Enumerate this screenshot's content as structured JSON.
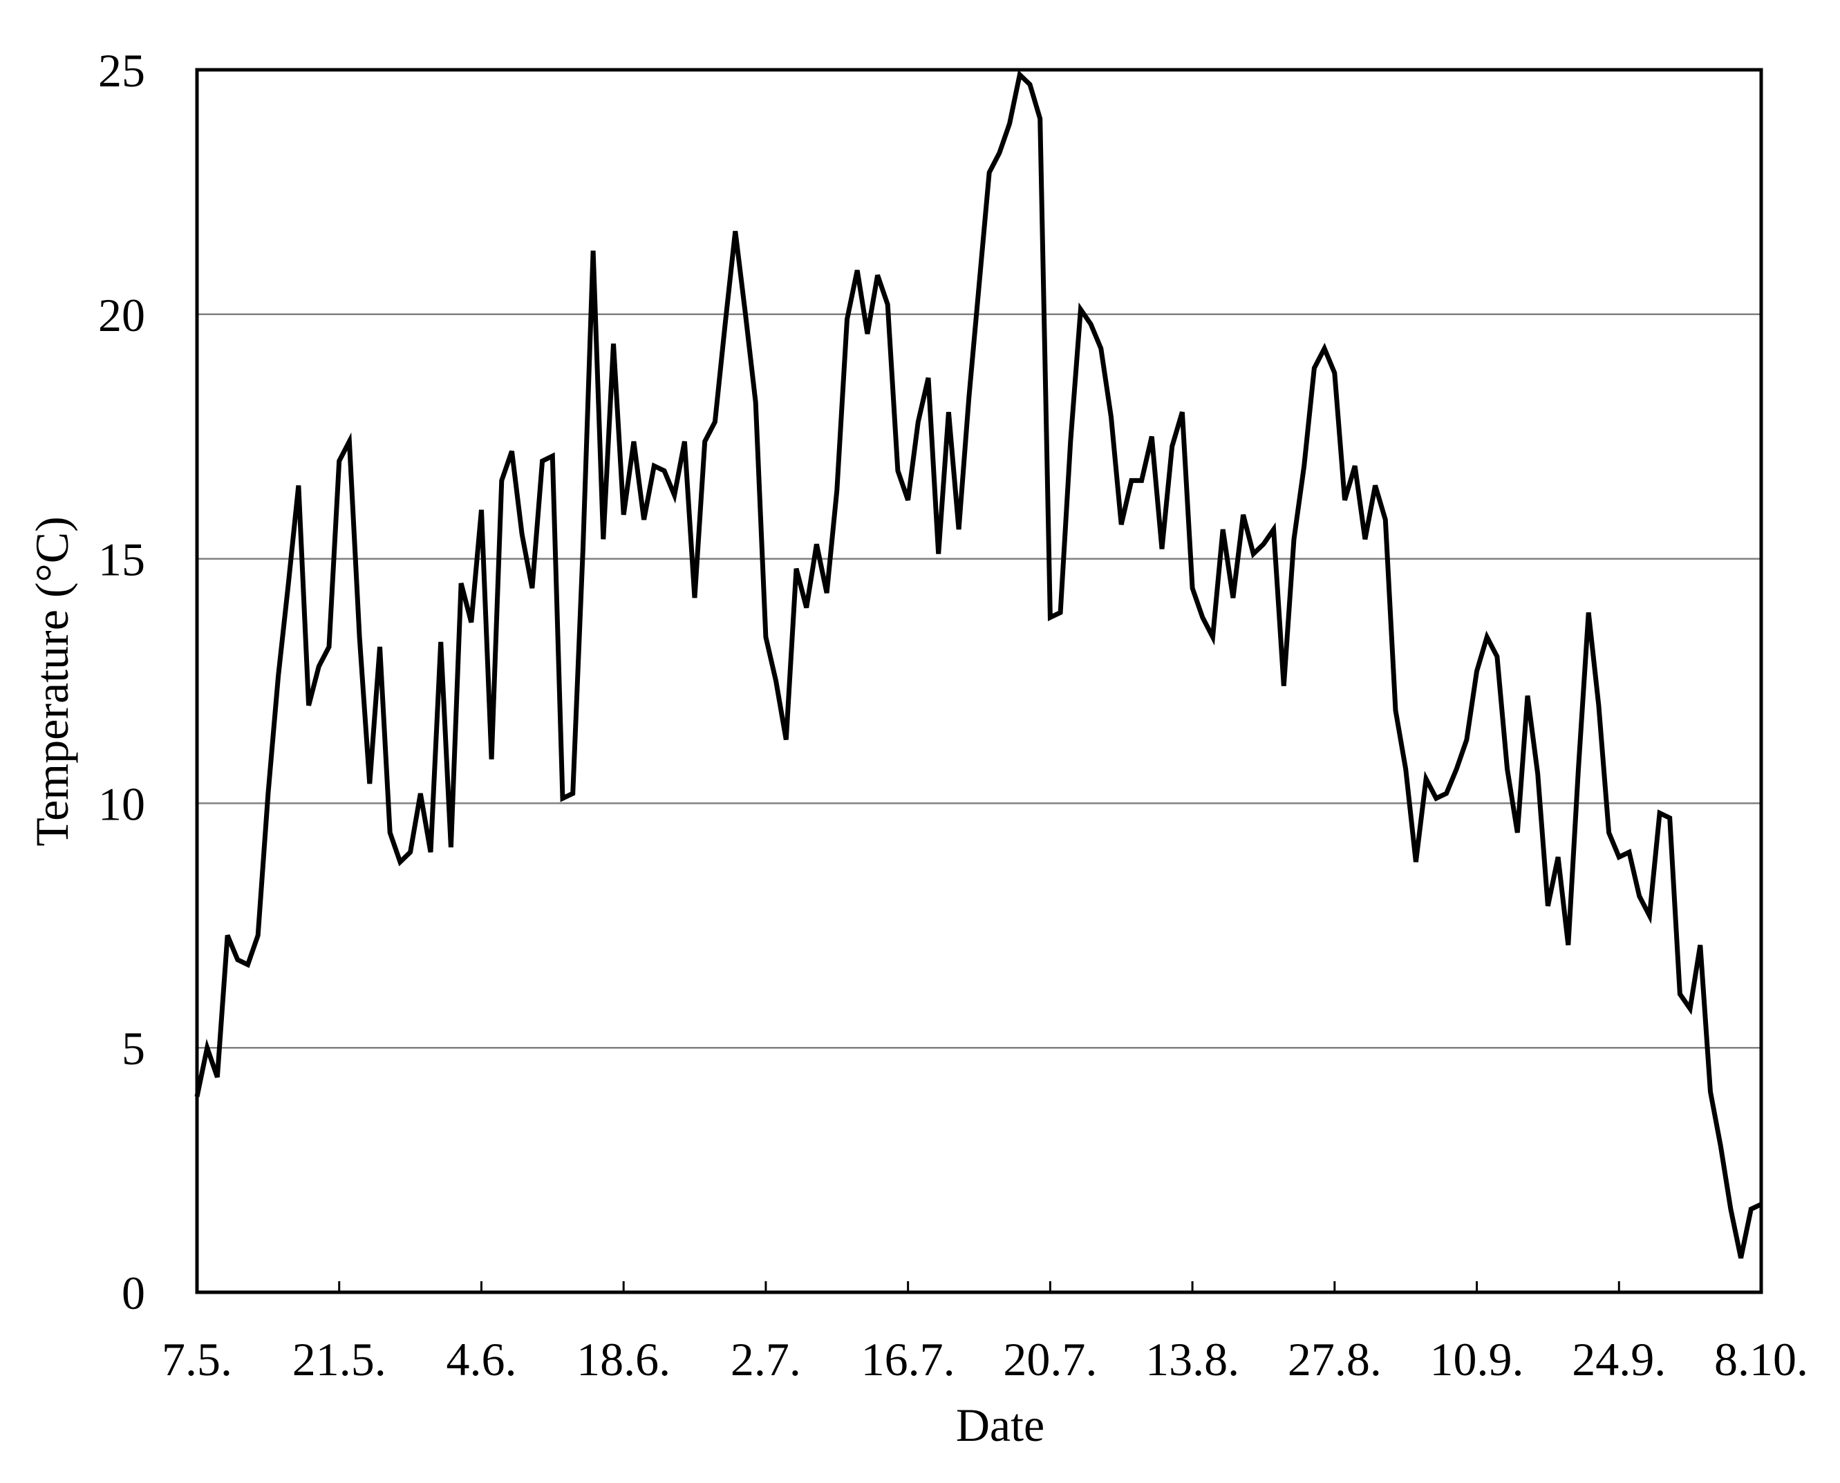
{
  "chart_data": {
    "type": "line",
    "x_label": "Date",
    "y_label": "Temperature (°C)",
    "categories": [
      "7.5.",
      null,
      null,
      null,
      null,
      null,
      null,
      null,
      null,
      null,
      null,
      null,
      null,
      null,
      "21.5.",
      null,
      null,
      null,
      null,
      null,
      null,
      null,
      null,
      null,
      null,
      null,
      null,
      null,
      "4.6.",
      null,
      null,
      null,
      null,
      null,
      null,
      null,
      null,
      null,
      null,
      null,
      null,
      null,
      "18.6.",
      null,
      null,
      null,
      null,
      null,
      null,
      null,
      null,
      null,
      null,
      null,
      null,
      null,
      "2.7.",
      null,
      null,
      null,
      null,
      null,
      null,
      null,
      null,
      null,
      null,
      null,
      null,
      null,
      "16.7.",
      null,
      null,
      null,
      null,
      null,
      null,
      null,
      null,
      null,
      null,
      null,
      null,
      null,
      "20.7.",
      null,
      null,
      null,
      null,
      null,
      null,
      null,
      null,
      null,
      null,
      null,
      null,
      null,
      "13.8.",
      null,
      null,
      null,
      null,
      null,
      null,
      null,
      null,
      null,
      null,
      null,
      null,
      null,
      "27.8.",
      null,
      null,
      null,
      null,
      null,
      null,
      null,
      null,
      null,
      null,
      null,
      null,
      null,
      "10.9.",
      null,
      null,
      null,
      null,
      null,
      null,
      null,
      null,
      null,
      null,
      null,
      null,
      null,
      "24.9.",
      null,
      null,
      null,
      null,
      null,
      null,
      null,
      null,
      null,
      null,
      null,
      null,
      null,
      "8.10."
    ],
    "series": [
      {
        "color": "#000000",
        "values": [
          4.0,
          5.0,
          4.4,
          7.3,
          6.8,
          6.7,
          7.3,
          10.2,
          12.6,
          14.5,
          16.5,
          12.0,
          12.8,
          13.2,
          17.0,
          17.4,
          13.4,
          10.4,
          13.2,
          9.4,
          8.8,
          9.0,
          10.2,
          9.0,
          13.3,
          9.1,
          14.5,
          13.7,
          16.0,
          10.9,
          16.6,
          17.2,
          15.5,
          14.4,
          17.0,
          17.1,
          10.1,
          10.2,
          15.2,
          21.3,
          15.4,
          19.4,
          15.9,
          17.4,
          15.8,
          16.9,
          16.8,
          16.3,
          17.4,
          14.2,
          17.4,
          17.8,
          19.8,
          21.7,
          20.0,
          18.2,
          13.4,
          12.5,
          11.3,
          14.8,
          14.0,
          15.3,
          14.3,
          16.4,
          19.9,
          20.9,
          19.6,
          20.8,
          20.2,
          16.8,
          16.2,
          17.8,
          18.7,
          15.1,
          18.0,
          15.6,
          18.3,
          20.6,
          22.9,
          23.3,
          23.9,
          24.9,
          24.7,
          24.0,
          13.8,
          13.9,
          17.4,
          20.1,
          19.8,
          19.3,
          17.9,
          15.7,
          16.6,
          16.6,
          17.5,
          15.2,
          17.3,
          18.0,
          14.4,
          13.8,
          13.4,
          15.6,
          14.2,
          15.9,
          15.1,
          15.3,
          15.6,
          12.4,
          15.4,
          16.9,
          18.9,
          19.3,
          18.8,
          16.2,
          16.9,
          15.4,
          16.5,
          15.8,
          11.9,
          10.7,
          8.8,
          10.5,
          10.1,
          10.2,
          10.7,
          11.3,
          12.7,
          13.4,
          13.0,
          10.7,
          9.4,
          12.2,
          10.6,
          7.9,
          8.9,
          7.1,
          10.7,
          13.9,
          12.0,
          9.4,
          8.9,
          9.0,
          8.1,
          7.7,
          9.8,
          9.7,
          6.1,
          5.8,
          7.1,
          4.1,
          3.0,
          1.7,
          0.7,
          1.7,
          1.8
        ]
      }
    ],
    "ylim": [
      0,
      25
    ],
    "yticks": [
      0,
      5,
      10,
      15,
      20,
      25
    ],
    "grid": true,
    "grid_color": "#808080"
  }
}
